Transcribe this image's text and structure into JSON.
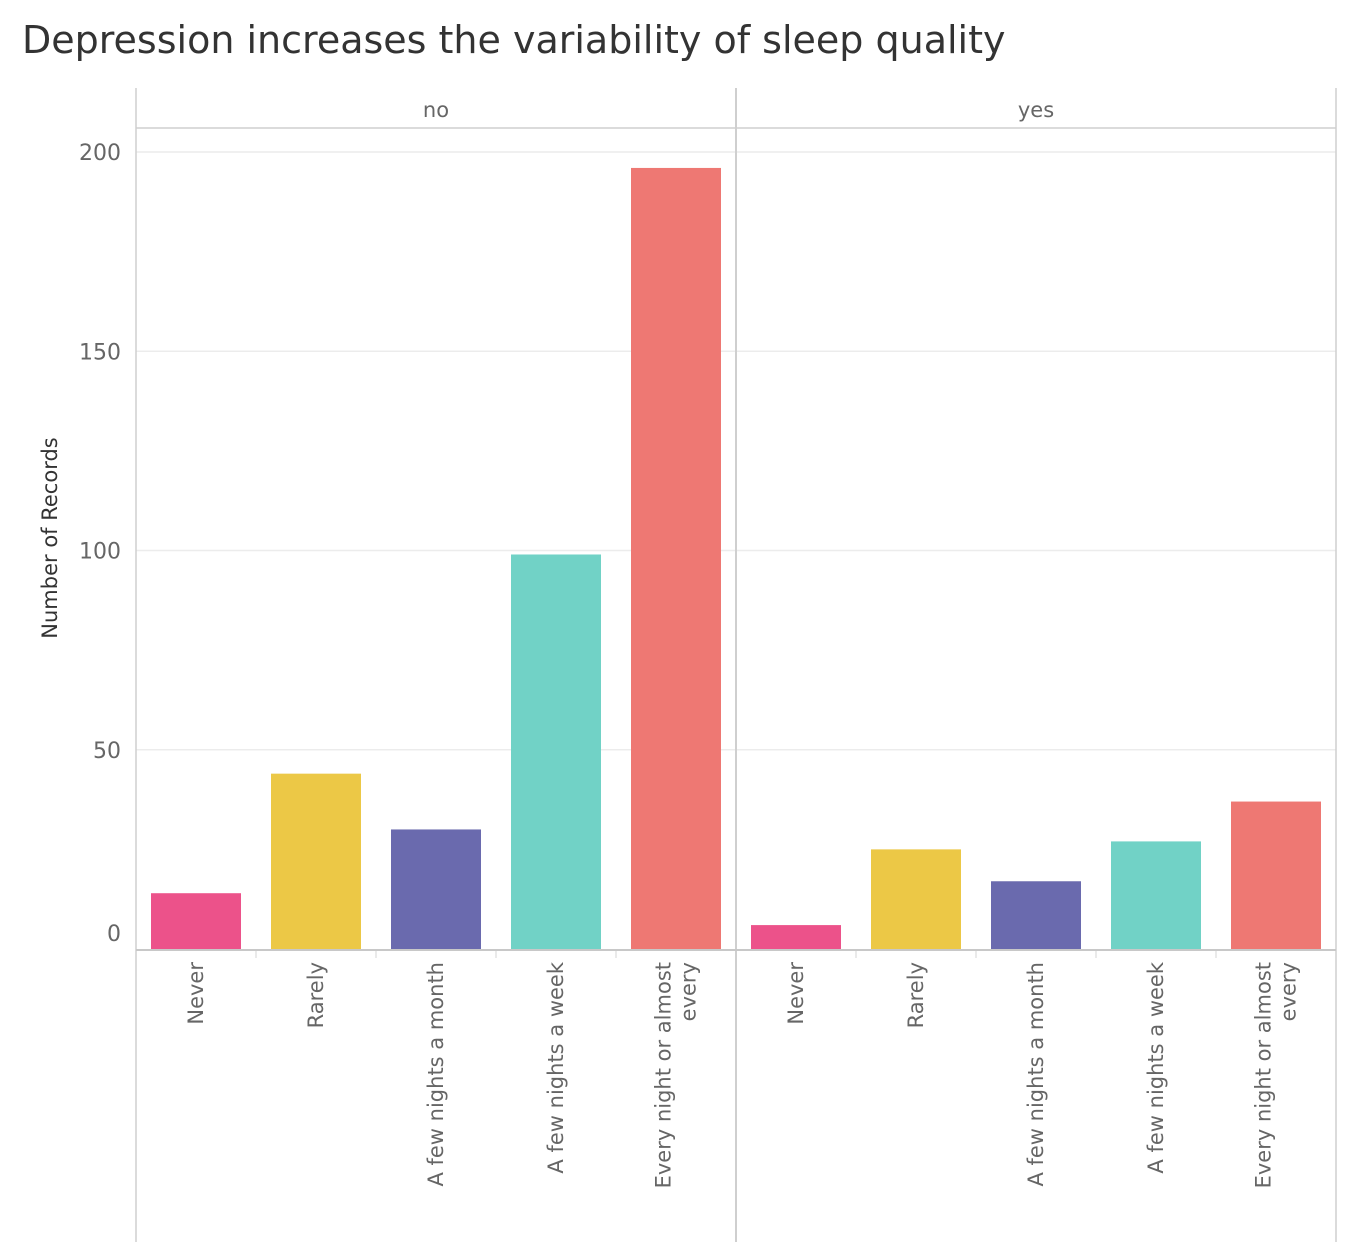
{
  "chart_data": {
    "type": "bar",
    "title": "Depression increases the variability of sleep quality",
    "ylabel": "Number of Records",
    "xlabel": "",
    "ylim": [
      0,
      205
    ],
    "yticks": [
      0,
      50,
      100,
      150,
      200
    ],
    "grid": true,
    "categories": [
      [
        "Never"
      ],
      [
        "Rarely"
      ],
      [
        "A few nights a month"
      ],
      [
        "A few nights a week"
      ],
      [
        "Every night or almost",
        "every"
      ]
    ],
    "colors": [
      "#EC528A",
      "#ECC846",
      "#6A6AAE",
      "#71D2C6",
      "#EE7873"
    ],
    "panels": [
      {
        "name": "no",
        "values": [
          14,
          44,
          30,
          99,
          196
        ]
      },
      {
        "name": "yes",
        "values": [
          6,
          25,
          17,
          27,
          37
        ]
      }
    ]
  }
}
